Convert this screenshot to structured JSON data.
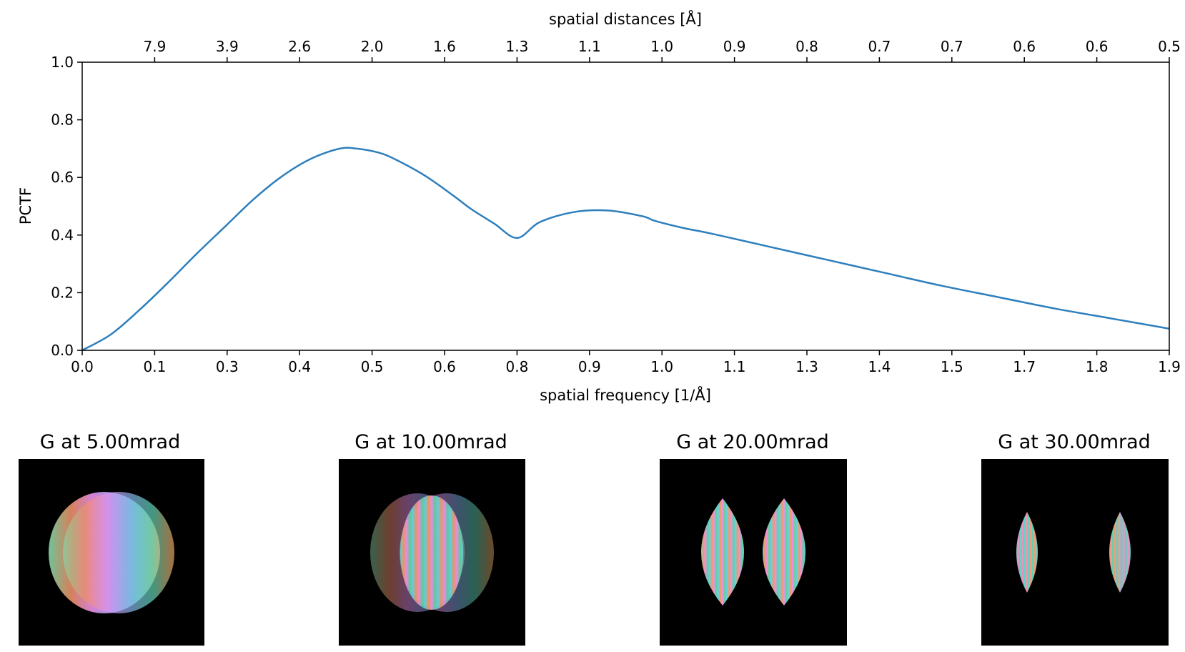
{
  "chart_data": [
    {
      "type": "line",
      "title": "",
      "xlabel": "spatial frequency [1/Å]",
      "ylabel": "PCTF",
      "top_xlabel": "spatial distances [Å]",
      "xlim": [
        0.0,
        1.9
      ],
      "ylim": [
        0.0,
        1.0
      ],
      "grid": false,
      "x_tick_labels": [
        "0.0",
        "0.1",
        "0.3",
        "0.4",
        "0.5",
        "0.6",
        "0.8",
        "0.9",
        "1.0",
        "1.1",
        "1.3",
        "1.4",
        "1.5",
        "1.7",
        "1.8",
        "1.9"
      ],
      "y_tick_labels": [
        "0.0",
        "0.2",
        "0.4",
        "0.6",
        "0.8",
        "1.0"
      ],
      "top_tick_labels": [
        "7.9",
        "3.9",
        "2.6",
        "2.0",
        "1.6",
        "1.3",
        "1.1",
        "1.0",
        "0.9",
        "0.8",
        "0.7",
        "0.7",
        "0.6",
        "0.6",
        "0.5"
      ],
      "series": [
        {
          "color": "#2e7fbd",
          "x": [
            0.0,
            0.05,
            0.1,
            0.15,
            0.2,
            0.25,
            0.3,
            0.35,
            0.4,
            0.45,
            0.48,
            0.52,
            0.55,
            0.6,
            0.65,
            0.68,
            0.72,
            0.76,
            0.8,
            0.86,
            0.92,
            0.98,
            1.0,
            1.05,
            1.1,
            1.2,
            1.3,
            1.4,
            1.5,
            1.6,
            1.7,
            1.8,
            1.9
          ],
          "y": [
            0.0,
            0.055,
            0.14,
            0.235,
            0.335,
            0.43,
            0.525,
            0.605,
            0.665,
            0.7,
            0.7,
            0.685,
            0.66,
            0.605,
            0.535,
            0.49,
            0.44,
            0.39,
            0.445,
            0.48,
            0.485,
            0.465,
            0.45,
            0.425,
            0.405,
            0.36,
            0.315,
            0.27,
            0.225,
            0.185,
            0.145,
            0.11,
            0.075
          ]
        }
      ]
    },
    {
      "type": "image",
      "panels": [
        {
          "title": "G at 5.00mrad"
        },
        {
          "title": "G at 10.00mrad"
        },
        {
          "title": "G at 20.00mrad"
        },
        {
          "title": "G at 30.00mrad"
        }
      ]
    }
  ]
}
